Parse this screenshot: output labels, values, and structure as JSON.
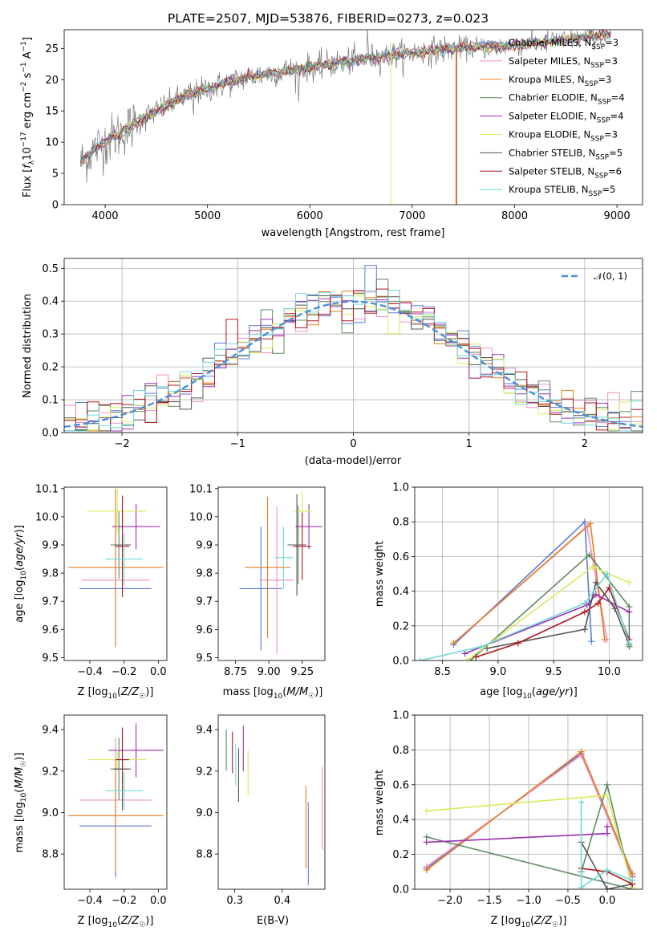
{
  "colors": {
    "Chabrier MILES": "#5b7bd5",
    "Salpeter MILES": "#ee8fc4",
    "Kroupa MILES": "#e67e22",
    "Chabrier ELODIE": "#5e8a62",
    "Salpeter ELODIE": "#9b2fb0",
    "Kroupa ELODIE": "#d9eb5a",
    "Chabrier STELIB": "#555555",
    "Salpeter STELIB": "#b0171f",
    "Kroupa STELIB": "#6fd9d9",
    "gauss": "#4a90d9"
  },
  "chart_data": [
    {
      "type": "line",
      "title": "PLATE=2507, MJD=53876, FIBERID=0273, z=0.023",
      "xlabel": "wavelength [Angstrom, rest frame]",
      "ylabel": "Flux [f_λ 10^-17 erg cm^-2 s^-1 A^-1]",
      "xlim": [
        3600,
        9250
      ],
      "ylim": [
        0,
        28
      ],
      "xticks": [
        4000,
        5000,
        6000,
        7000,
        8000,
        9000
      ],
      "yticks": [
        0,
        5,
        10,
        15,
        20,
        25
      ],
      "legend_position": "top-right",
      "series": [
        {
          "name": "Chabrier MILES, N",
          "sub": "SSP",
          "suffix": "=3"
        },
        {
          "name": "Salpeter MILES, N",
          "sub": "SSP",
          "suffix": "=3"
        },
        {
          "name": "Kroupa MILES, N",
          "sub": "SSP",
          "suffix": "=3"
        },
        {
          "name": "Chabrier ELODIE, N",
          "sub": "SSP",
          "suffix": "=4"
        },
        {
          "name": "Salpeter ELODIE, N",
          "sub": "SSP",
          "suffix": "=4"
        },
        {
          "name": "Kroupa ELODIE, N",
          "sub": "SSP",
          "suffix": "=3"
        },
        {
          "name": "Chabrier STELIB, N",
          "sub": "SSP",
          "suffix": "=5"
        },
        {
          "name": "Salpeter STELIB, N",
          "sub": "SSP",
          "suffix": "=6"
        },
        {
          "name": "Kroupa STELIB, N",
          "sub": "SSP",
          "suffix": "=5"
        }
      ],
      "continuum": [
        [
          3750,
          6.5
        ],
        [
          3900,
          9
        ],
        [
          4050,
          10.5
        ],
        [
          4250,
          12.5
        ],
        [
          4500,
          15
        ],
        [
          4800,
          17.5
        ],
        [
          5100,
          19
        ],
        [
          5400,
          20.5
        ],
        [
          5800,
          21.5
        ],
        [
          6200,
          22.5
        ],
        [
          6600,
          23.5
        ],
        [
          7000,
          24.3
        ],
        [
          7400,
          25
        ],
        [
          7800,
          25.3
        ],
        [
          8200,
          25.8
        ],
        [
          8600,
          26.5
        ],
        [
          9000,
          27.5
        ]
      ]
    },
    {
      "type": "bar",
      "subtype": "step-histogram",
      "xlabel": "(data-model)/error",
      "ylabel": "Normed distribution",
      "xlim": [
        -2.5,
        2.5
      ],
      "ylim": [
        0,
        0.53
      ],
      "xticks": [
        -2,
        -1,
        0,
        1,
        2
      ],
      "yticks": [
        0.0,
        0.1,
        0.2,
        0.3,
        0.4,
        0.5
      ],
      "grid": true,
      "legend_position": "top-right",
      "legend": [
        "𝒩(0, 1)"
      ],
      "bin_width": 0.1,
      "bin_start": -2.5
    },
    {
      "type": "scatter",
      "subtype": "errorbar",
      "xlabel": "Z [log10(Z/Z☉)]",
      "ylabel": "age  [log10(age/yr)]",
      "xlim": [
        -0.55,
        0.05
      ],
      "ylim": [
        9.49,
        10.105
      ],
      "xticks": [
        -0.4,
        -0.2,
        0.0
      ],
      "yticks": [
        9.5,
        9.6,
        9.7,
        9.8,
        9.9,
        10.0,
        10.1
      ],
      "points": [
        {
          "model": "Chabrier MILES",
          "x": -0.25,
          "xerr": 0.21,
          "y": 9.745,
          "yerr": 0.2
        },
        {
          "model": "Salpeter MILES",
          "x": -0.25,
          "xerr": 0.2,
          "y": 9.775,
          "yerr": 0.24
        },
        {
          "model": "Kroupa MILES",
          "x": -0.25,
          "xerr": 0.28,
          "y": 9.82,
          "yerr": 0.28
        },
        {
          "model": "Chabrier ELODIE",
          "x": -0.23,
          "xerr": 0.05,
          "y": 9.9,
          "yerr": 0.12
        },
        {
          "model": "Salpeter ELODIE",
          "x": -0.13,
          "xerr": 0.14,
          "y": 9.965,
          "yerr": 0.08
        },
        {
          "model": "Kroupa ELODIE",
          "x": -0.24,
          "xerr": 0.17,
          "y": 10.02,
          "yerr": 0.08
        },
        {
          "model": "Chabrier STELIB",
          "x": -0.21,
          "xerr": 0.05,
          "y": 9.9,
          "yerr": 0.16
        },
        {
          "model": "Salpeter STELIB",
          "x": -0.21,
          "xerr": 0.04,
          "y": 9.895,
          "yerr": 0.18
        },
        {
          "model": "Kroupa STELIB",
          "x": -0.2,
          "xerr": 0.11,
          "y": 9.85,
          "yerr": 0.09
        }
      ]
    },
    {
      "type": "scatter",
      "subtype": "errorbar",
      "xlabel": "mass [log10(M/M☉)]",
      "xlim": [
        8.62,
        9.42
      ],
      "ylim": [
        9.49,
        10.105
      ],
      "xticks": [
        8.75,
        9.0,
        9.25
      ],
      "yticks": [
        9.5,
        9.6,
        9.7,
        9.8,
        9.9,
        10.0,
        10.1
      ],
      "points": [
        {
          "model": "Chabrier MILES",
          "x": 8.94,
          "xerr": 0.16,
          "y": 9.745,
          "yerr": 0.22
        },
        {
          "model": "Salpeter MILES",
          "x": 9.06,
          "xerr": 0.13,
          "y": 9.775,
          "yerr": 0.26
        },
        {
          "model": "Kroupa MILES",
          "x": 8.99,
          "xerr": 0.17,
          "y": 9.82,
          "yerr": 0.25
        },
        {
          "model": "Chabrier ELODIE",
          "x": 9.22,
          "xerr": 0.06,
          "y": 9.9,
          "yerr": 0.14
        },
        {
          "model": "Salpeter ELODIE",
          "x": 9.3,
          "xerr": 0.1,
          "y": 9.965,
          "yerr": 0.08
        },
        {
          "model": "Kroupa ELODIE",
          "x": 9.25,
          "xerr": 0.07,
          "y": 10.02,
          "yerr": 0.07
        },
        {
          "model": "Chabrier STELIB",
          "x": 9.21,
          "xerr": 0.07,
          "y": 9.9,
          "yerr": 0.18
        },
        {
          "model": "Salpeter STELIB",
          "x": 9.25,
          "xerr": 0.07,
          "y": 9.895,
          "yerr": 0.12
        },
        {
          "model": "Kroupa STELIB",
          "x": 9.11,
          "xerr": 0.07,
          "y": 9.855,
          "yerr": 0.11
        }
      ]
    },
    {
      "type": "line",
      "xlabel": "age  [log10(age/yr)]",
      "ylabel": "mass weight",
      "xlim": [
        8.25,
        10.3
      ],
      "ylim": [
        0,
        1.0
      ],
      "xticks": [
        8.5,
        9.0,
        9.5,
        10.0
      ],
      "yticks": [
        0.0,
        0.2,
        0.4,
        0.6,
        0.8,
        1.0
      ],
      "grid": true,
      "series": [
        {
          "model": "Chabrier MILES",
          "x": [
            8.6,
            9.78,
            9.84
          ],
          "y": [
            0.09,
            0.8,
            0.11
          ]
        },
        {
          "model": "Salpeter MILES",
          "x": [
            8.6,
            9.8,
            9.98
          ],
          "y": [
            0.1,
            0.77,
            0.12
          ]
        },
        {
          "model": "Kroupa MILES",
          "x": [
            8.6,
            9.83,
            9.96
          ],
          "y": [
            0.1,
            0.79,
            0.12
          ]
        },
        {
          "model": "Chabrier ELODIE",
          "x": [
            8.75,
            9.82,
            10.18,
            10.18
          ],
          "y": [
            0.0,
            0.61,
            0.31,
            0.08
          ]
        },
        {
          "model": "Salpeter ELODIE",
          "x": [
            8.7,
            9.8,
            9.88,
            10.18
          ],
          "y": [
            0.04,
            0.32,
            0.38,
            0.28
          ]
        },
        {
          "model": "Kroupa ELODIE",
          "x": [
            8.72,
            9.85,
            10.18
          ],
          "y": [
            0.0,
            0.54,
            0.45
          ]
        },
        {
          "model": "Chabrier STELIB",
          "x": [
            8.9,
            9.78,
            9.88,
            10.05,
            10.18
          ],
          "y": [
            0.07,
            0.18,
            0.45,
            0.3,
            0.09
          ]
        },
        {
          "model": "Salpeter STELIB",
          "x": [
            8.8,
            9.18,
            9.78,
            9.9,
            10.0,
            10.18
          ],
          "y": [
            0.02,
            0.1,
            0.28,
            0.33,
            0.42,
            0.12
          ]
        },
        {
          "model": "Kroupa STELIB",
          "x": [
            8.3,
            8.85,
            9.78,
            9.98,
            10.18
          ],
          "y": [
            0.0,
            0.08,
            0.33,
            0.5,
            0.1
          ]
        }
      ]
    },
    {
      "type": "scatter",
      "subtype": "errorbar",
      "xlabel": "Z [log10(Z/Z☉)]",
      "ylabel": "mass [log10(M/M☉)]",
      "xlim": [
        -0.55,
        0.05
      ],
      "ylim": [
        8.63,
        9.47
      ],
      "xticks": [
        -0.4,
        -0.2,
        0.0
      ],
      "yticks": [
        8.8,
        9.0,
        9.2,
        9.4
      ],
      "points": [
        {
          "model": "Chabrier MILES",
          "x": -0.25,
          "xerr": 0.21,
          "y": 8.935,
          "yerr": 0.25
        },
        {
          "model": "Salpeter MILES",
          "x": -0.25,
          "xerr": 0.21,
          "y": 9.06,
          "yerr": 0.3
        },
        {
          "model": "Kroupa MILES",
          "x": -0.25,
          "xerr": 0.28,
          "y": 8.985,
          "yerr": 0.27
        },
        {
          "model": "Chabrier ELODIE",
          "x": -0.23,
          "xerr": 0.05,
          "y": 9.21,
          "yerr": 0.15
        },
        {
          "model": "Salpeter ELODIE",
          "x": -0.13,
          "xerr": 0.16,
          "y": 9.3,
          "yerr": 0.13
        },
        {
          "model": "Kroupa ELODIE",
          "x": -0.24,
          "xerr": 0.17,
          "y": 9.255,
          "yerr": 0.05
        },
        {
          "model": "Chabrier STELIB",
          "x": -0.21,
          "xerr": 0.05,
          "y": 9.21,
          "yerr": 0.2
        },
        {
          "model": "Salpeter STELIB",
          "x": -0.21,
          "xerr": 0.04,
          "y": 9.255,
          "yerr": 0.15
        },
        {
          "model": "Kroupa STELIB",
          "x": -0.2,
          "xerr": 0.11,
          "y": 9.105,
          "yerr": 0.09
        }
      ]
    },
    {
      "type": "scatter",
      "subtype": "errorbar",
      "xlabel": "E(B-V)",
      "xlim": [
        0.265,
        0.49
      ],
      "ylim": [
        8.63,
        9.47
      ],
      "xticks": [
        0.3,
        0.4
      ],
      "yticks": [
        8.8,
        9.0,
        9.2,
        9.4
      ],
      "points": [
        {
          "model": "Chabrier MILES",
          "x": 0.455,
          "y": 8.85,
          "yerr": 0.2
        },
        {
          "model": "Salpeter MILES",
          "x": 0.485,
          "y": 9.02,
          "yerr": 0.2
        },
        {
          "model": "Kroupa MILES",
          "x": 0.45,
          "y": 8.93,
          "yerr": 0.2
        },
        {
          "model": "Chabrier ELODIE",
          "x": 0.282,
          "y": 9.3,
          "yerr": 0.1
        },
        {
          "model": "Salpeter ELODIE",
          "x": 0.318,
          "y": 9.31,
          "yerr": 0.11
        },
        {
          "model": "Kroupa ELODIE",
          "x": 0.328,
          "y": 9.19,
          "yerr": 0.11
        },
        {
          "model": "Chabrier STELIB",
          "x": 0.308,
          "y": 9.18,
          "yerr": 0.13
        },
        {
          "model": "Salpeter STELIB",
          "x": 0.295,
          "y": 9.29,
          "yerr": 0.1
        },
        {
          "model": "Kroupa STELIB",
          "x": 0.302,
          "y": 9.23,
          "yerr": 0.1
        }
      ]
    },
    {
      "type": "line",
      "xlabel": "Z [log10(Z/Z☉)]",
      "ylabel": "mass weight",
      "xlim": [
        -2.45,
        0.45
      ],
      "ylim": [
        0,
        1.0
      ],
      "xticks": [
        -2.0,
        -1.5,
        -1.0,
        -0.5,
        0.0
      ],
      "yticks": [
        0.0,
        0.2,
        0.4,
        0.6,
        0.8,
        1.0
      ],
      "grid": true,
      "series": [
        {
          "model": "Chabrier MILES",
          "x": [
            -2.3,
            -0.33,
            0.32
          ],
          "y": [
            0.12,
            0.78,
            0.07
          ]
        },
        {
          "model": "Salpeter MILES",
          "x": [
            -2.3,
            -0.33,
            0.32
          ],
          "y": [
            0.13,
            0.77,
            0.08
          ]
        },
        {
          "model": "Kroupa MILES",
          "x": [
            -2.3,
            -0.33,
            0.32
          ],
          "y": [
            0.11,
            0.79,
            0.09
          ]
        },
        {
          "model": "Chabrier ELODIE",
          "x": [
            -2.3,
            0.32,
            0.0,
            -0.33
          ],
          "y": [
            0.3,
            0.0,
            0.6,
            0.1
          ]
        },
        {
          "model": "Salpeter ELODIE",
          "x": [
            -2.3,
            0.0,
            0.0
          ],
          "y": [
            0.27,
            0.32,
            0.36
          ]
        },
        {
          "model": "Kroupa ELODIE",
          "x": [
            -2.3,
            0.0,
            0.32
          ],
          "y": [
            0.45,
            0.54,
            0.01
          ]
        },
        {
          "model": "Chabrier STELIB",
          "x": [
            -0.33,
            0.0,
            0.32
          ],
          "y": [
            0.27,
            0.0,
            0.03
          ]
        },
        {
          "model": "Salpeter STELIB",
          "x": [
            -0.33,
            0.0,
            0.32
          ],
          "y": [
            0.12,
            0.1,
            0.03
          ]
        },
        {
          "model": "Kroupa STELIB",
          "x": [
            -0.33,
            -0.33,
            0.0,
            0.32
          ],
          "y": [
            0.5,
            0.01,
            0.11,
            0.05
          ]
        }
      ]
    }
  ]
}
